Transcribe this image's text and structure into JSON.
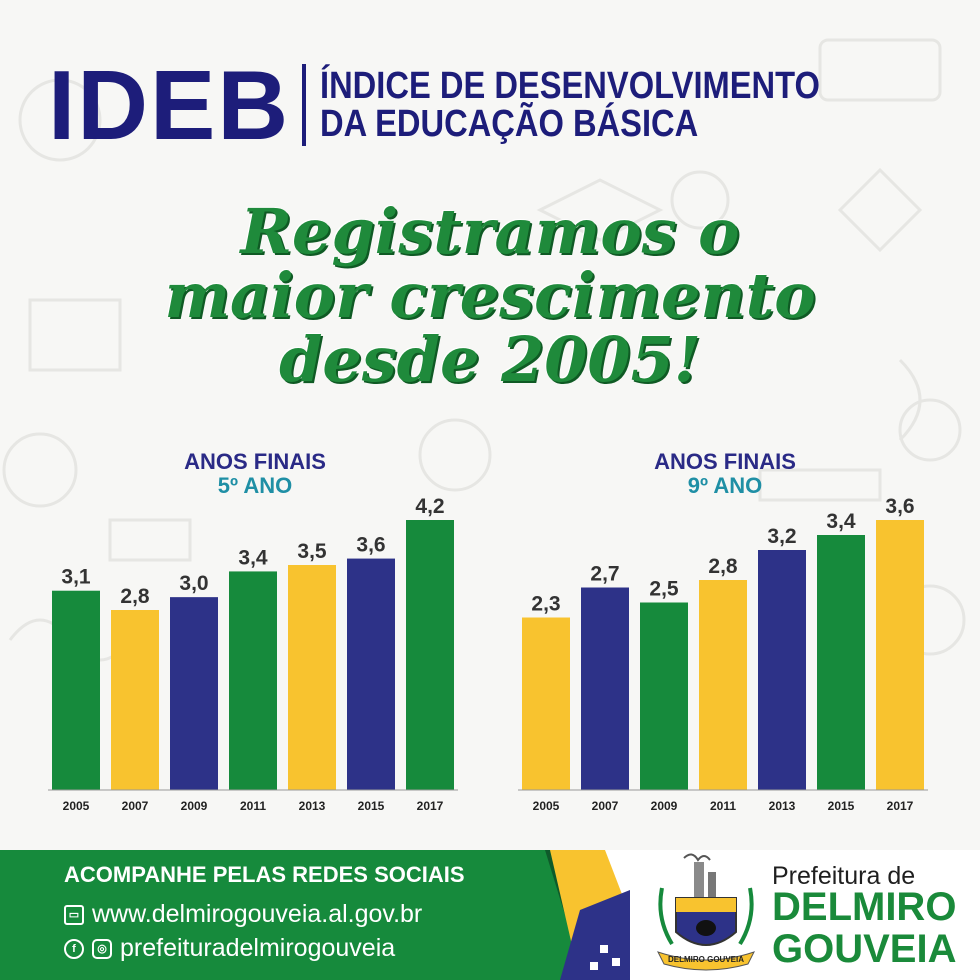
{
  "header": {
    "acronym": "IDEB",
    "subtitle_line1": "ÍNDICE DE DESENVOLVIMENTO",
    "subtitle_line2": "DA EDUCAÇÃO BÁSICA"
  },
  "headline": {
    "line1": "Registramos o",
    "line2": "maior crescimento",
    "line3": "desde 2005!"
  },
  "colors": {
    "navy": "#1d1d7a",
    "green": "#168a3c",
    "yellow": "#f8c32f",
    "blue": "#2d3288",
    "title_teal": "#1f8fa5"
  },
  "chart_data": [
    {
      "type": "bar",
      "title_line1": "ANOS FINAIS",
      "title_line2": "5º ANO",
      "categories": [
        "2005",
        "2007",
        "2009",
        "2011",
        "2013",
        "2015",
        "2017"
      ],
      "values": [
        3.1,
        2.8,
        3.0,
        3.4,
        3.5,
        3.6,
        4.2
      ],
      "value_labels": [
        "3,1",
        "2,8",
        "3,0",
        "3,4",
        "3,5",
        "3,6",
        "4,2"
      ],
      "bar_colors": [
        "#168a3c",
        "#f8c32f",
        "#2d3288",
        "#168a3c",
        "#f8c32f",
        "#2d3288",
        "#168a3c"
      ],
      "ylim": [
        0,
        4.2
      ],
      "grid": false
    },
    {
      "type": "bar",
      "title_line1": "ANOS FINAIS",
      "title_line2": "9º ANO",
      "categories": [
        "2005",
        "2007",
        "2009",
        "2011",
        "2013",
        "2015",
        "2017"
      ],
      "values": [
        2.3,
        2.7,
        2.5,
        2.8,
        3.2,
        3.4,
        3.6
      ],
      "value_labels": [
        "2,3",
        "2,7",
        "2,5",
        "2,8",
        "3,2",
        "3,4",
        "3,6"
      ],
      "bar_colors": [
        "#f8c32f",
        "#2d3288",
        "#168a3c",
        "#f8c32f",
        "#2d3288",
        "#168a3c",
        "#f8c32f"
      ],
      "ylim": [
        0,
        3.6
      ],
      "grid": false
    }
  ],
  "footer": {
    "social_label": "ACOMPANHE PELAS REDES SOCIAIS",
    "website": "www.delmirogouveia.al.gov.br",
    "handle": "prefeituradelmirogouveia",
    "web_icon": "browser-icon",
    "social_icons": [
      "facebook-icon",
      "instagram-icon"
    ]
  },
  "brand": {
    "line1": "Prefeitura de",
    "line2": "DELMIRO",
    "line3": "GOUVEIA",
    "crest_banner": "DELMIRO GOUVEIA"
  }
}
